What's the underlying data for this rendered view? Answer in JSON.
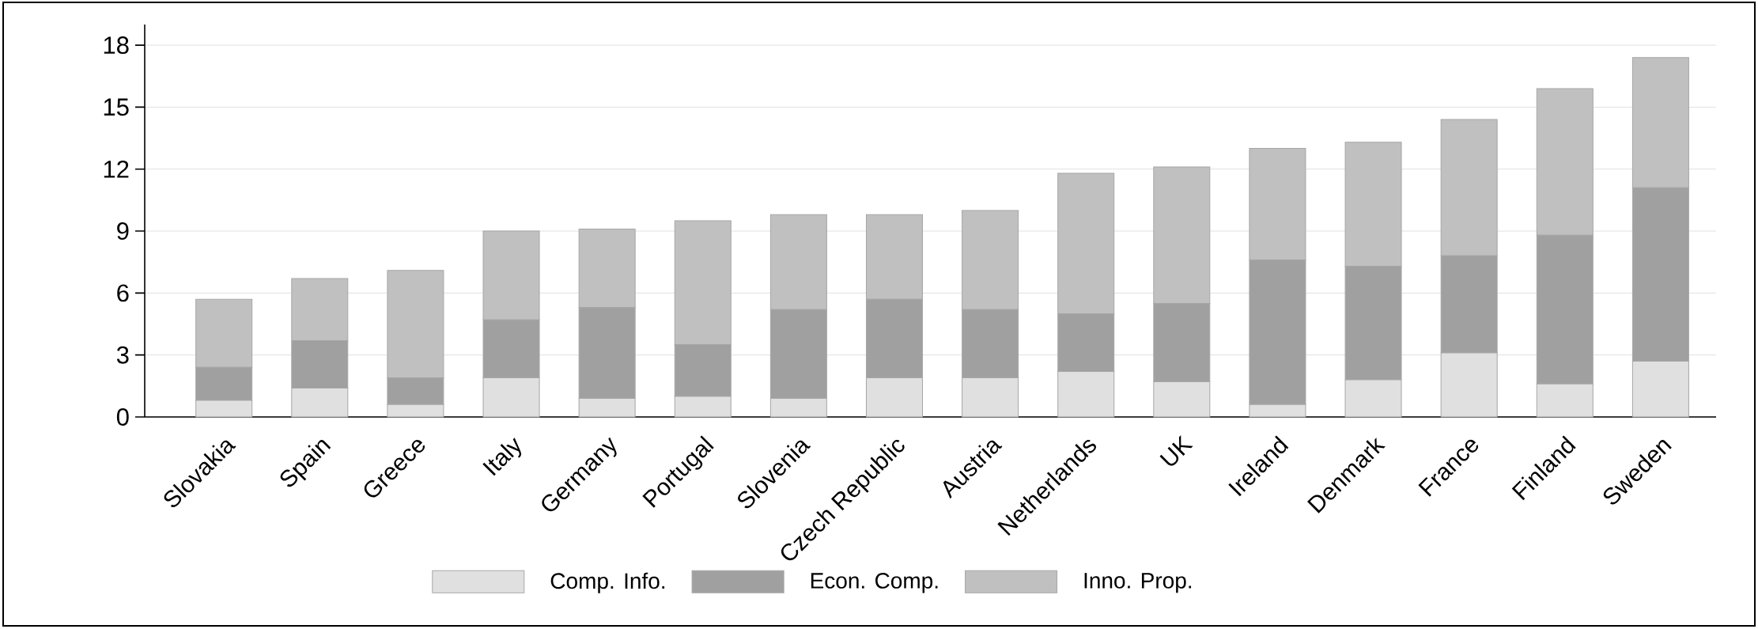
{
  "chart_data": {
    "type": "bar",
    "stacked": true,
    "categories": [
      "Slovakia",
      "Spain",
      "Greece",
      "Italy",
      "Germany",
      "Portugal",
      "Slovenia",
      "Czech Republic",
      "Austria",
      "Netherlands",
      "UK",
      "Ireland",
      "Denmark",
      "France",
      "Finland",
      "Sweden"
    ],
    "series": [
      {
        "name": "Comp. Info.",
        "color": "#e0e0e0",
        "values": [
          0.8,
          1.4,
          0.6,
          1.9,
          0.9,
          1.0,
          0.9,
          1.9,
          1.9,
          2.2,
          1.7,
          0.6,
          1.8,
          3.1,
          1.6,
          2.7
        ]
      },
      {
        "name": "Econ. Comp.",
        "color": "#a0a0a0",
        "values": [
          1.6,
          2.3,
          1.3,
          2.8,
          4.4,
          2.5,
          4.3,
          3.8,
          3.3,
          2.8,
          3.8,
          7.0,
          5.5,
          4.7,
          7.2,
          8.4
        ]
      },
      {
        "name": "Inno. Prop.",
        "color": "#c0c0c0",
        "values": [
          3.3,
          3.0,
          5.2,
          4.3,
          3.8,
          6.0,
          4.6,
          4.1,
          4.8,
          6.8,
          6.6,
          5.4,
          6.0,
          6.6,
          7.1,
          6.3
        ]
      }
    ],
    "ylim": [
      0,
      19
    ],
    "yticks": [
      0,
      3,
      6,
      9,
      12,
      15,
      18
    ],
    "grid": "y",
    "legend": "bottom"
  }
}
